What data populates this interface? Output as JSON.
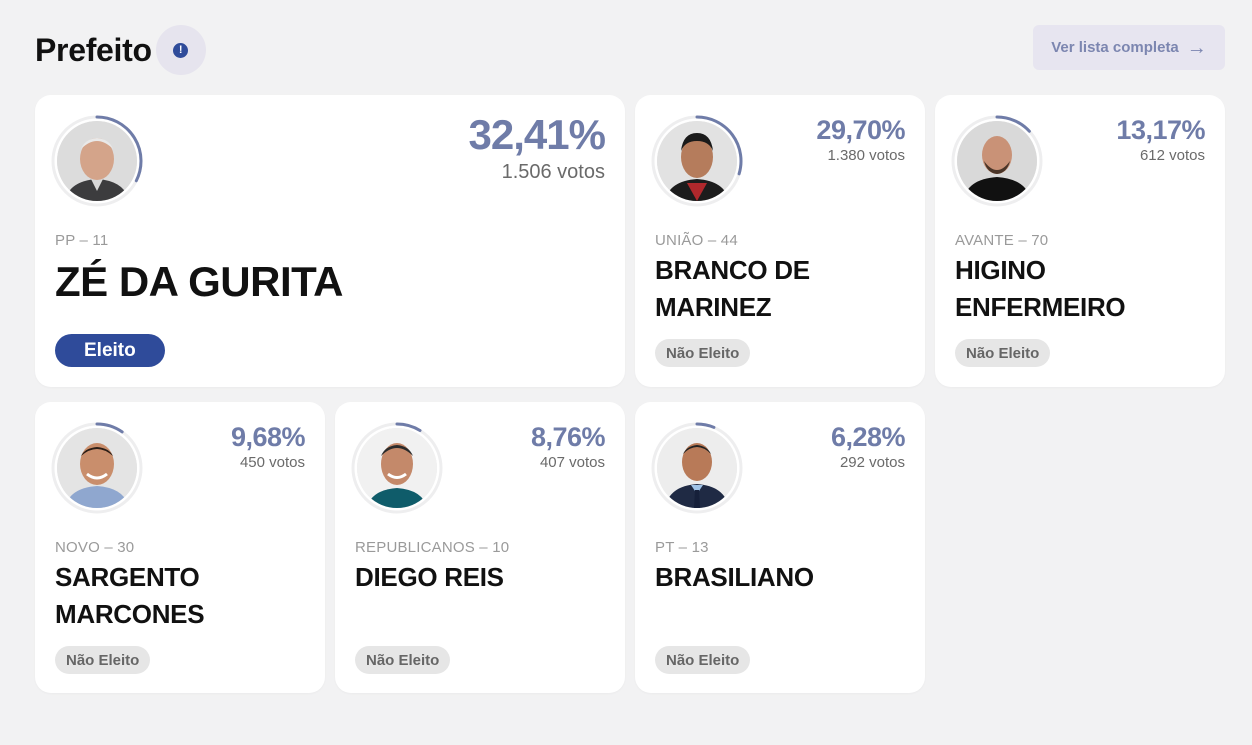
{
  "header": {
    "title": "Prefeito",
    "info_icon": "!",
    "see_all_label": "Ver lista completa",
    "see_all_icon": "→"
  },
  "colors": {
    "accent": "#6f7ca8",
    "elected": "#2f4b9a",
    "ring": "#6f7ca8"
  },
  "candidates": [
    {
      "name": "ZÉ DA GURITA",
      "party": "PP – 11",
      "pct": "32,41%",
      "pct_value": 32.41,
      "votes": "1.506 votos",
      "status": "Eleito"
    },
    {
      "name": "BRANCO DE MARINEZ",
      "party": "UNIÃO – 44",
      "pct": "29,70%",
      "pct_value": 29.7,
      "votes": "1.380 votos",
      "status": "Não Eleito"
    },
    {
      "name": "HIGINO ENFERMEIRO",
      "party": "AVANTE – 70",
      "pct": "13,17%",
      "pct_value": 13.17,
      "votes": "612 votos",
      "status": "Não Eleito"
    },
    {
      "name": "SARGENTO MARCONES",
      "party": "NOVO – 30",
      "pct": "9,68%",
      "pct_value": 9.68,
      "votes": "450 votos",
      "status": "Não Eleito"
    },
    {
      "name": "DIEGO REIS",
      "party": "REPUBLICANOS – 10",
      "pct": "8,76%",
      "pct_value": 8.76,
      "votes": "407 votos",
      "status": "Não Eleito"
    },
    {
      "name": "BRASILIANO",
      "party": "PT – 13",
      "pct": "6,28%",
      "pct_value": 6.28,
      "votes": "292 votos",
      "status": "Não Eleito"
    }
  ]
}
